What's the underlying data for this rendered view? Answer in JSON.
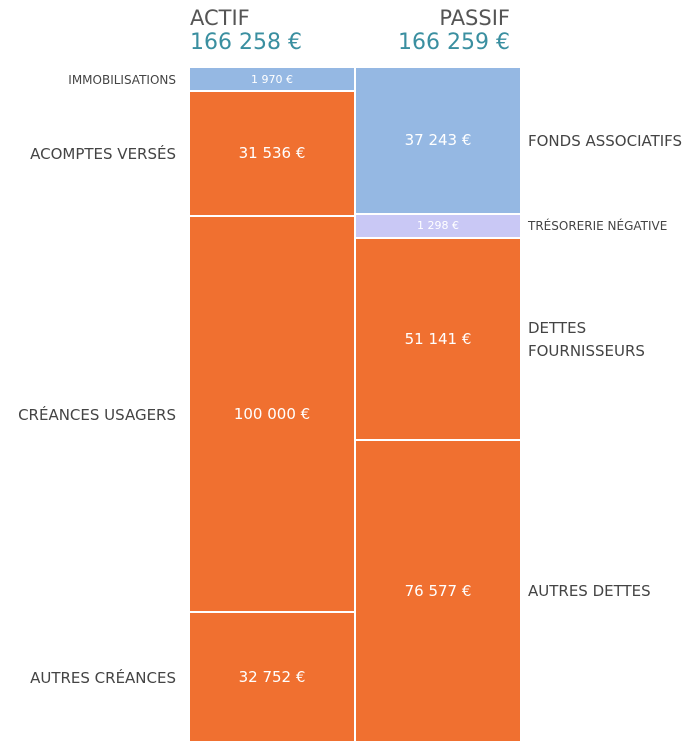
{
  "chart_data": {
    "type": "balance",
    "columns": [
      {
        "name": "ACTIF",
        "total": 166258,
        "total_label": "166 258 €",
        "segments": [
          {
            "name": "IMMOBILISATIONS",
            "value": 1970,
            "value_label": "1 970 €",
            "color": "#95b8e3"
          },
          {
            "name": "ACOMPTES VERSÉS",
            "value": 31536,
            "value_label": "31 536 €",
            "color": "#f07030"
          },
          {
            "name": "CRÉANCES USAGERS",
            "value": 100000,
            "value_label": "100 000 €",
            "color": "#f07030"
          },
          {
            "name": "AUTRES CRÉANCES",
            "value": 32752,
            "value_label": "32 752 €",
            "color": "#f07030"
          }
        ]
      },
      {
        "name": "PASSIF",
        "total": 166259,
        "total_label": "166 259 €",
        "segments": [
          {
            "name": "FONDS ASSOCIATIFS",
            "value": 37243,
            "value_label": "37 243 €",
            "color": "#95b8e3"
          },
          {
            "name": "TRÉSORERIE NÉGATIVE",
            "value": 1298,
            "value_label": "1 298 €",
            "color": "#c9c8f5"
          },
          {
            "name": "DETTES FOURNISSEURS",
            "value": 51141,
            "value_label": "51 141 €",
            "color": "#f07030"
          },
          {
            "name": "AUTRES DETTES",
            "value": 76577,
            "value_label": "76 577 €",
            "color": "#f07030"
          }
        ]
      }
    ]
  }
}
